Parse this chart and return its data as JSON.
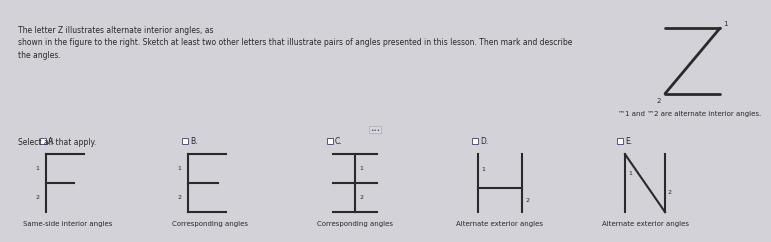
{
  "bg_top": "#d2d2d8",
  "bg_bottom": "#d2d2d8",
  "bg_divider": "#b0b0b8",
  "title_text_line1": "The letter Z illustrates alternate interior angles, as",
  "title_text_line2": "shown in the figure to the right. Sketch at least two other letters that illustrate pairs of angles presented in this lesson. Then mark and describe",
  "title_text_line3": "the angles.",
  "subtitle_z": "™1 and ™2 are alternate interior angles.",
  "select_text": "Select all that apply.",
  "options": [
    "A.",
    "B.",
    "C.",
    "D.",
    "E."
  ],
  "labels": [
    "Same-side interior angles",
    "Corresponding angles",
    "Corresponding angles",
    "Alternate exterior angles",
    "Alternate exterior angles"
  ],
  "letters": [
    "F",
    "E",
    "I",
    "H",
    "N"
  ],
  "text_color": "#2a2a2a",
  "line_color": "#2a2a2a",
  "checkbox_color": "#555577"
}
